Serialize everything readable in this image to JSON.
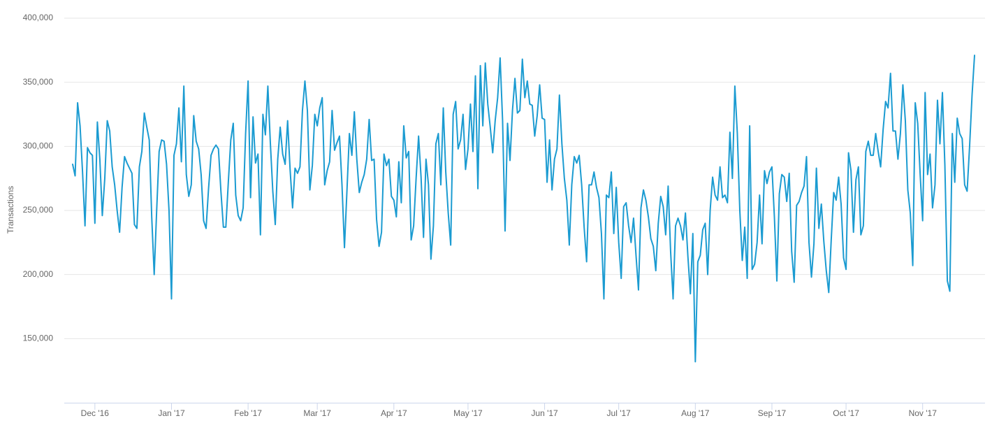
{
  "chart_data": {
    "type": "line",
    "y_label": "Transactions",
    "categories": [
      null,
      null,
      null,
      null,
      null,
      null,
      null,
      null,
      null,
      "Dec '16",
      null,
      null,
      null,
      null,
      null,
      null,
      null,
      null,
      null,
      null,
      null,
      null,
      null,
      null,
      null,
      null,
      null,
      null,
      null,
      null,
      null,
      null,
      null,
      null,
      null,
      null,
      null,
      null,
      null,
      null,
      "Jan '17",
      null,
      null,
      null,
      null,
      null,
      null,
      null,
      null,
      null,
      null,
      null,
      null,
      null,
      null,
      null,
      null,
      null,
      null,
      null,
      null,
      null,
      null,
      null,
      null,
      null,
      null,
      null,
      null,
      null,
      null,
      "Feb '17",
      null,
      null,
      null,
      null,
      null,
      null,
      null,
      null,
      null,
      null,
      null,
      null,
      null,
      null,
      null,
      null,
      null,
      null,
      null,
      null,
      null,
      null,
      null,
      null,
      null,
      null,
      null,
      "Mar '17",
      null,
      null,
      null,
      null,
      null,
      null,
      null,
      null,
      null,
      null,
      null,
      null,
      null,
      null,
      null,
      null,
      null,
      null,
      null,
      null,
      null,
      null,
      null,
      null,
      null,
      null,
      null,
      null,
      null,
      null,
      "Apr '17",
      null,
      null,
      null,
      null,
      null,
      null,
      null,
      null,
      null,
      null,
      null,
      null,
      null,
      null,
      null,
      null,
      null,
      null,
      null,
      null,
      null,
      null,
      null,
      null,
      null,
      null,
      null,
      null,
      null,
      "May '17",
      null,
      null,
      null,
      null,
      null,
      null,
      null,
      null,
      null,
      null,
      null,
      null,
      null,
      null,
      null,
      null,
      null,
      null,
      null,
      null,
      null,
      null,
      null,
      null,
      null,
      null,
      null,
      null,
      null,
      null,
      "Jun '17",
      null,
      null,
      null,
      null,
      null,
      null,
      null,
      null,
      null,
      null,
      null,
      null,
      null,
      null,
      null,
      null,
      null,
      null,
      null,
      null,
      null,
      null,
      null,
      null,
      null,
      null,
      null,
      null,
      null,
      "Jul '17",
      null,
      null,
      null,
      null,
      null,
      null,
      null,
      null,
      null,
      null,
      null,
      null,
      null,
      null,
      null,
      null,
      null,
      null,
      null,
      null,
      null,
      null,
      null,
      null,
      null,
      null,
      null,
      null,
      null,
      null,
      "Aug '17",
      null,
      null,
      null,
      null,
      null,
      null,
      null,
      null,
      null,
      null,
      null,
      null,
      null,
      null,
      null,
      null,
      null,
      null,
      null,
      null,
      null,
      null,
      null,
      null,
      null,
      null,
      null,
      null,
      null,
      null,
      "Sep '17",
      null,
      null,
      null,
      null,
      null,
      null,
      null,
      null,
      null,
      null,
      null,
      null,
      null,
      null,
      null,
      null,
      null,
      null,
      null,
      null,
      null,
      null,
      null,
      null,
      null,
      null,
      null,
      null,
      null,
      "Oct '17",
      null,
      null,
      null,
      null,
      null,
      null,
      null,
      null,
      null,
      null,
      null,
      null,
      null,
      null,
      null,
      null,
      null,
      null,
      null,
      null,
      null,
      null,
      null,
      null,
      null,
      null,
      null,
      null,
      null,
      null,
      "Nov '17",
      null,
      null,
      null,
      null,
      null,
      null,
      null,
      null,
      null,
      null,
      null,
      null,
      null,
      null,
      null,
      null,
      null,
      null,
      null,
      null,
      null
    ],
    "values": [
      286000,
      277000,
      334000,
      316000,
      280000,
      238000,
      299000,
      295000,
      293000,
      240000,
      319000,
      290000,
      246000,
      275000,
      320000,
      312000,
      284000,
      270000,
      250000,
      233000,
      268000,
      292000,
      287000,
      283000,
      279000,
      239000,
      236000,
      284000,
      296000,
      326000,
      315000,
      305000,
      245000,
      200000,
      250000,
      296000,
      305000,
      304000,
      286000,
      250000,
      181000,
      293000,
      302000,
      330000,
      288000,
      347000,
      278000,
      261000,
      270000,
      324000,
      304000,
      298000,
      278000,
      242000,
      236000,
      267000,
      293000,
      298000,
      301000,
      298000,
      265000,
      237000,
      237000,
      272000,
      305000,
      318000,
      262000,
      246000,
      242000,
      252000,
      310000,
      351000,
      260000,
      323000,
      287000,
      294000,
      231000,
      325000,
      309000,
      347000,
      303000,
      265000,
      239000,
      290000,
      315000,
      294000,
      286000,
      320000,
      282000,
      252000,
      283000,
      279000,
      284000,
      328000,
      351000,
      328000,
      266000,
      285000,
      325000,
      316000,
      330000,
      338000,
      270000,
      281000,
      288000,
      328000,
      297000,
      303000,
      308000,
      270000,
      221000,
      265000,
      310000,
      293000,
      327000,
      290000,
      264000,
      272000,
      278000,
      290000,
      321000,
      289000,
      290000,
      243000,
      222000,
      233000,
      294000,
      285000,
      290000,
      261000,
      258000,
      245000,
      288000,
      256000,
      316000,
      291000,
      296000,
      227000,
      238000,
      275000,
      308000,
      276000,
      229000,
      290000,
      270000,
      212000,
      238000,
      302000,
      310000,
      270000,
      330000,
      280000,
      248000,
      223000,
      325000,
      335000,
      298000,
      305000,
      325000,
      282000,
      298000,
      333000,
      296000,
      355000,
      267000,
      363000,
      316000,
      365000,
      333000,
      315000,
      295000,
      320000,
      338000,
      369000,
      320000,
      234000,
      318000,
      289000,
      328000,
      353000,
      326000,
      328000,
      368000,
      338000,
      351000,
      333000,
      332000,
      308000,
      324000,
      348000,
      322000,
      321000,
      272000,
      305000,
      266000,
      290000,
      298000,
      340000,
      302000,
      275000,
      258000,
      223000,
      270000,
      292000,
      287000,
      293000,
      270000,
      237000,
      210000,
      270000,
      270000,
      280000,
      268000,
      260000,
      232000,
      181000,
      262000,
      260000,
      280000,
      232000,
      268000,
      225000,
      197000,
      253000,
      256000,
      238000,
      225000,
      244000,
      215000,
      188000,
      252000,
      266000,
      258000,
      245000,
      228000,
      222000,
      203000,
      240000,
      261000,
      253000,
      231000,
      269000,
      218000,
      181000,
      238000,
      244000,
      238000,
      227000,
      248000,
      214000,
      185000,
      232000,
      132000,
      210000,
      215000,
      235000,
      240000,
      200000,
      250000,
      276000,
      262000,
      258000,
      284000,
      260000,
      262000,
      256000,
      311000,
      275000,
      347000,
      310000,
      250000,
      211000,
      237000,
      197000,
      316000,
      204000,
      208000,
      225000,
      262000,
      224000,
      281000,
      271000,
      280000,
      284000,
      245000,
      195000,
      263000,
      278000,
      276000,
      257000,
      279000,
      218000,
      194000,
      254000,
      257000,
      264000,
      269000,
      292000,
      225000,
      198000,
      224000,
      283000,
      236000,
      255000,
      226000,
      203000,
      186000,
      227000,
      264000,
      258000,
      276000,
      255000,
      213000,
      204000,
      295000,
      281000,
      233000,
      274000,
      284000,
      231000,
      238000,
      296000,
      304000,
      293000,
      293000,
      310000,
      296000,
      284000,
      313000,
      335000,
      330000,
      357000,
      312000,
      312000,
      290000,
      310000,
      348000,
      320000,
      266000,
      248000,
      207000,
      334000,
      318000,
      278000,
      242000,
      342000,
      278000,
      294000,
      252000,
      270000,
      336000,
      302000,
      342000,
      285000,
      195000,
      187000,
      310000,
      272000,
      322000,
      310000,
      306000,
      270000,
      265000,
      300000,
      340000,
      371000
    ],
    "color": "#1b9bd1",
    "ylim": [
      100000,
      400000
    ],
    "yticks": [
      {
        "value": 150000,
        "label": "150,000"
      },
      {
        "value": 200000,
        "label": "200,000"
      },
      {
        "value": 250000,
        "label": "250,000"
      },
      {
        "value": 300000,
        "label": "300,000"
      },
      {
        "value": 350000,
        "label": "350,000"
      },
      {
        "value": 400000,
        "label": "400,000"
      }
    ],
    "grid": true
  }
}
